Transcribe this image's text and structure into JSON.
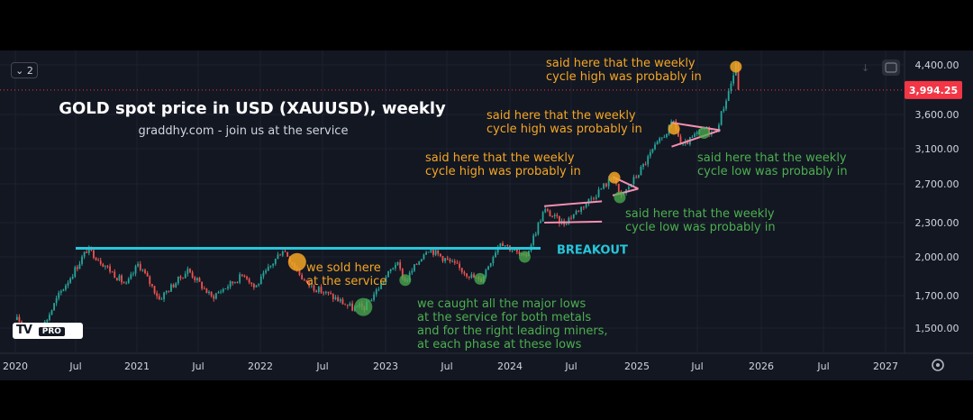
{
  "title": "GOLD spot price in USD (XAUUSD), weekly",
  "subtitle": "graddhy.com - join us at the service",
  "toolbar": {
    "collapse_label": "2"
  },
  "logo": {
    "mark": "TV",
    "badge": "PRO"
  },
  "colors": {
    "background": "#131722",
    "grid": "#1e222d",
    "bull": "#26a69a",
    "bear": "#ef5350",
    "orange_text": "#f5a623",
    "green_text": "#4caf50",
    "cyan": "#26c6da",
    "pink": "#f48fb1",
    "price_tag": "#f23645"
  },
  "chart_data": {
    "type": "candlestick",
    "x_tick_labels": [
      "2020",
      "Jul",
      "2021",
      "Jul",
      "2022",
      "Jul",
      "2023",
      "Jul",
      "2024",
      "Jul",
      "2025",
      "Jul",
      "2026",
      "Jul",
      "2027"
    ],
    "y_tick_labels": [
      "4,400.00",
      "3,600.00",
      "3,100.00",
      "2,700.00",
      "2,300.00",
      "2,000.00",
      "1,700.00",
      "1,500.00"
    ],
    "y_ticks": [
      4400,
      3600,
      3100,
      2700,
      2300,
      2000,
      1700,
      1500
    ],
    "y_scale": "log",
    "ylim": [
      1400,
      4700
    ],
    "xlim": [
      "2019-12-30",
      "2027-04-15"
    ],
    "last_price": 3994.25,
    "last_price_label": "3,994.25",
    "price_path": [
      [
        "2020-01-06",
        1550
      ],
      [
        "2020-03-16",
        1480
      ],
      [
        "2020-05-15",
        1720
      ],
      [
        "2020-08-06",
        2070
      ],
      [
        "2020-11-30",
        1780
      ],
      [
        "2021-01-06",
        1950
      ],
      [
        "2021-03-08",
        1680
      ],
      [
        "2021-06-01",
        1900
      ],
      [
        "2021-08-09",
        1690
      ],
      [
        "2021-11-16",
        1870
      ],
      [
        "2021-12-15",
        1760
      ],
      [
        "2022-03-08",
        2070
      ],
      [
        "2022-05-16",
        1790
      ],
      [
        "2022-09-28",
        1620
      ],
      [
        "2022-11-04",
        1630
      ],
      [
        "2023-02-01",
        1960
      ],
      [
        "2023-02-28",
        1810
      ],
      [
        "2023-05-04",
        2080
      ],
      [
        "2023-10-06",
        1810
      ],
      [
        "2023-12-04",
        2140
      ],
      [
        "2024-02-14",
        1985
      ],
      [
        "2024-04-12",
        2430
      ],
      [
        "2024-06-07",
        2290
      ],
      [
        "2024-10-30",
        2790
      ],
      [
        "2024-11-14",
        2540
      ],
      [
        "2025-04-22",
        3500
      ],
      [
        "2025-05-15",
        3120
      ],
      [
        "2025-07-20",
        3400
      ],
      [
        "2025-08-20",
        3310
      ],
      [
        "2025-10-20",
        4380
      ],
      [
        "2025-10-28",
        3994
      ]
    ],
    "breakout_level": 2075,
    "breakout_label": "BREAKOUT",
    "breakout_range": [
      "2020-07-01",
      "2024-04-01"
    ],
    "markers": [
      {
        "date": "2022-04-18",
        "price": 1960,
        "color": "orange",
        "size": "large"
      },
      {
        "date": "2022-10-28",
        "price": 1630,
        "color": "green",
        "size": "large"
      },
      {
        "date": "2023-02-28",
        "price": 1820,
        "color": "green",
        "size": "small"
      },
      {
        "date": "2023-10-06",
        "price": 1830,
        "color": "green",
        "size": "small"
      },
      {
        "date": "2024-02-14",
        "price": 2000,
        "color": "green",
        "size": "small"
      },
      {
        "date": "2024-10-30",
        "price": 2770,
        "color": "orange",
        "size": "small"
      },
      {
        "date": "2024-11-14",
        "price": 2560,
        "color": "green",
        "size": "small"
      },
      {
        "date": "2025-04-22",
        "price": 3390,
        "color": "orange",
        "size": "small"
      },
      {
        "date": "2025-07-20",
        "price": 3330,
        "color": "green",
        "size": "small"
      },
      {
        "date": "2025-10-20",
        "price": 4370,
        "color": "orange",
        "size": "small"
      }
    ],
    "patterns": [
      {
        "top": [
          [
            "2024-04-12",
            2470
          ],
          [
            "2024-09-25",
            2520
          ]
        ],
        "bottom": [
          [
            "2024-04-12",
            2300
          ],
          [
            "2024-09-25",
            2310
          ]
        ]
      },
      {
        "top": [
          [
            "2024-10-25",
            2780
          ],
          [
            "2025-01-05",
            2650
          ]
        ],
        "bottom": [
          [
            "2024-10-25",
            2580
          ],
          [
            "2025-01-05",
            2650
          ]
        ]
      },
      {
        "top": [
          [
            "2025-04-15",
            3480
          ],
          [
            "2025-09-05",
            3370
          ]
        ],
        "bottom": [
          [
            "2025-04-15",
            3130
          ],
          [
            "2025-09-05",
            3370
          ]
        ]
      }
    ],
    "annotations": [
      {
        "lines": [
          "said here that the weekly",
          "cycle high was probably in"
        ],
        "color": "orange"
      },
      {
        "lines": [
          "said here that the weekly",
          "cycle high was probably in"
        ],
        "color": "orange"
      },
      {
        "lines": [
          "said here that the weekly",
          "cycle high was probably in"
        ],
        "color": "orange"
      },
      {
        "lines": [
          "said here that the weekly",
          "cycle low was probably in"
        ],
        "color": "green"
      },
      {
        "lines": [
          "said here that the weekly",
          "cycle low was probably in"
        ],
        "color": "green"
      },
      {
        "lines": [
          "we sold here",
          "at the service"
        ],
        "color": "orange"
      },
      {
        "lines": [
          "we caught all the major lows",
          "at the service for both metals",
          "and for the right leading miners,",
          "at each phase at these lows"
        ],
        "color": "green"
      }
    ]
  }
}
